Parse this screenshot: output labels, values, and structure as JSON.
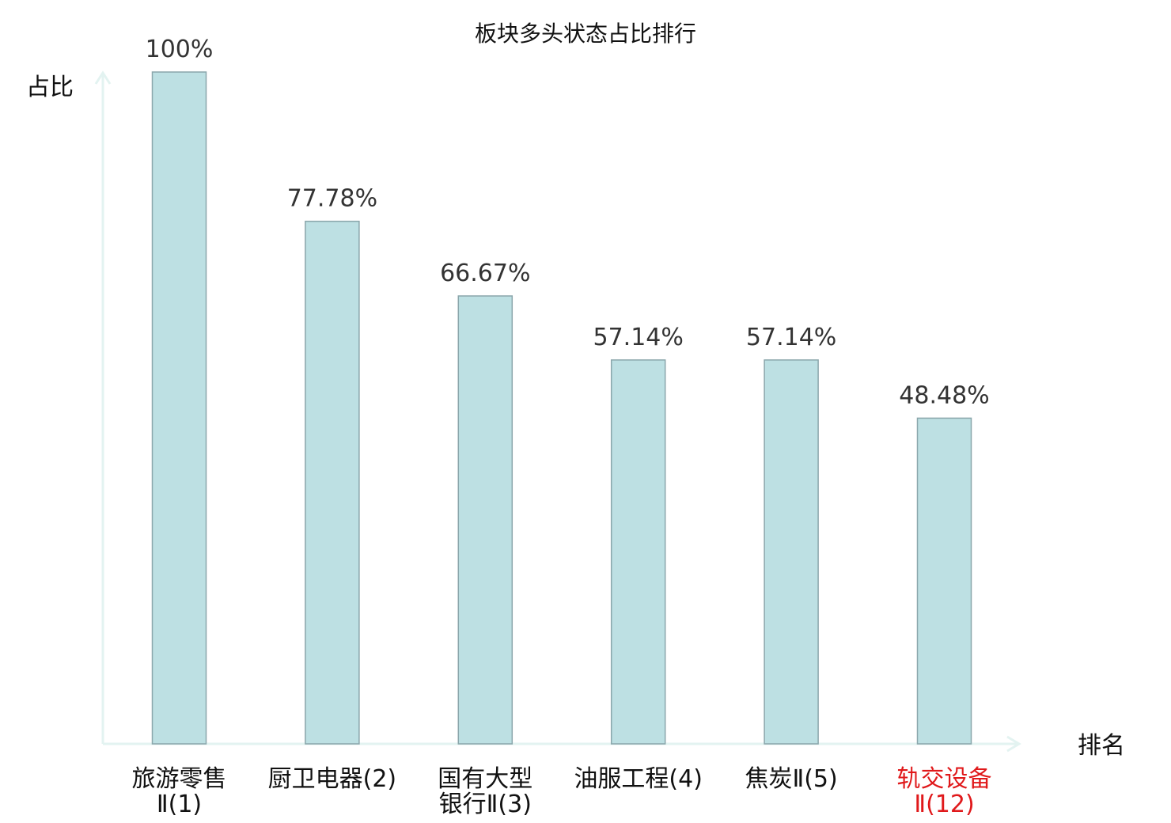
{
  "chart_data": {
    "type": "bar",
    "title": "板块多头状态占比排行",
    "ylabel": "占比",
    "xlabel": "排名",
    "ylim": [
      0,
      100
    ],
    "grid": false,
    "categories": [
      {
        "lines": [
          "旅游零售",
          "Ⅱ(1)"
        ],
        "highlight": false
      },
      {
        "lines": [
          "厨卫电器(2)"
        ],
        "highlight": false
      },
      {
        "lines": [
          "国有大型",
          "银行Ⅱ(3)"
        ],
        "highlight": false
      },
      {
        "lines": [
          "油服工程(4)"
        ],
        "highlight": false
      },
      {
        "lines": [
          "焦炭Ⅱ(5)"
        ],
        "highlight": false
      },
      {
        "lines": [
          "轨交设备",
          "Ⅱ(12)"
        ],
        "highlight": true
      }
    ],
    "values": [
      100,
      77.78,
      66.67,
      57.14,
      57.14,
      48.48
    ],
    "value_labels": [
      "100%",
      "77.78%",
      "66.67%",
      "57.14%",
      "57.14%",
      "48.48%"
    ]
  },
  "colors": {
    "bar_fill": "#bde0e3",
    "bar_stroke": "#8aa6ab",
    "axis": "#e3f3f1",
    "label_text": "#111111",
    "value_text": "#333333",
    "highlight_text": "#e0191b"
  }
}
